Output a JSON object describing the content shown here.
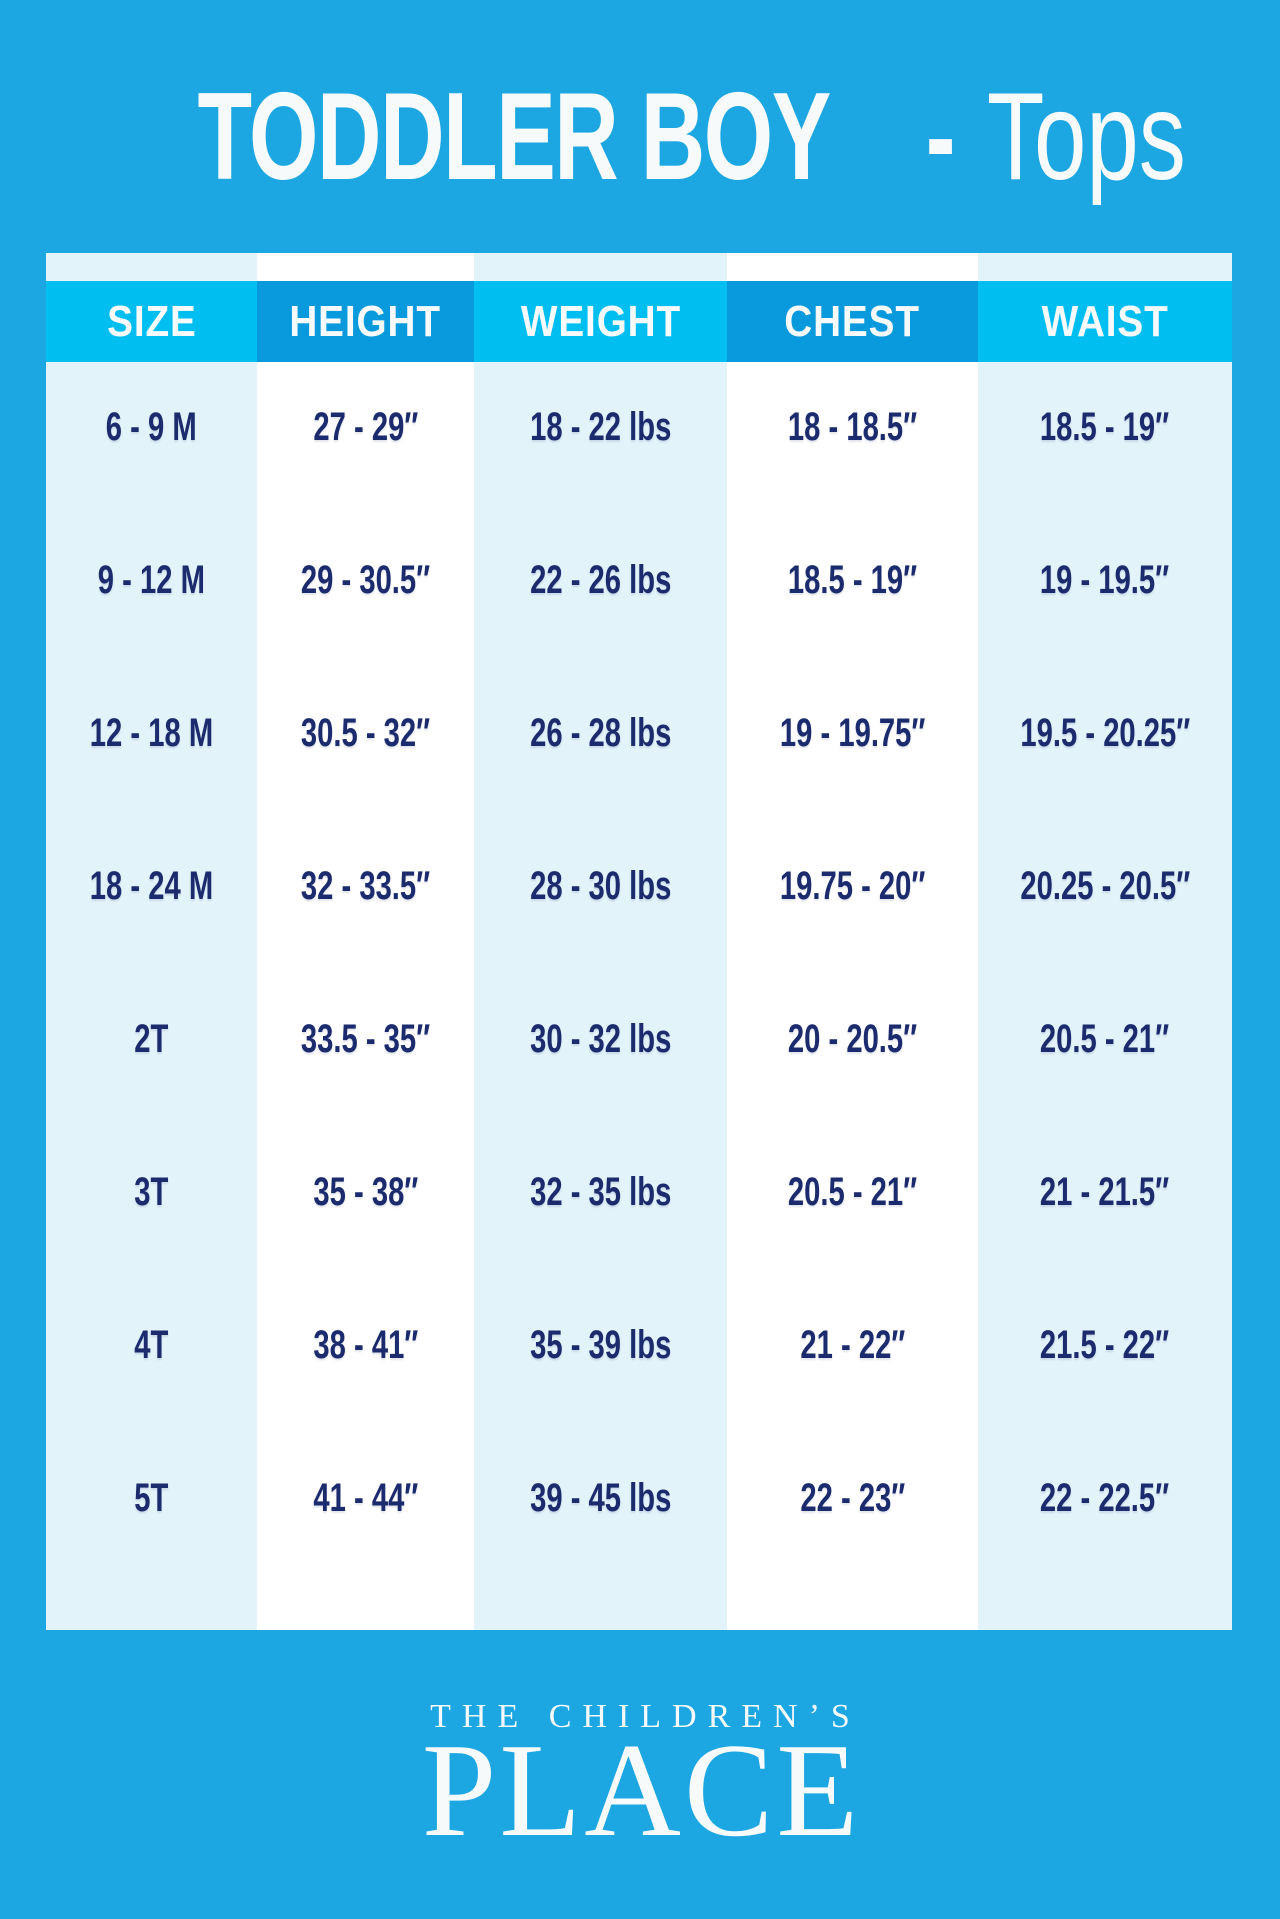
{
  "title": {
    "main": "TODDLER BOY",
    "dash": "-",
    "sub": "Tops"
  },
  "chart_data": {
    "type": "table",
    "title": "TODDLER BOY - Tops",
    "columns": [
      "SIZE",
      "HEIGHT",
      "WEIGHT",
      "CHEST",
      "WAIST"
    ],
    "rows": [
      [
        "6 - 9 M",
        "27 - 29″",
        "18 - 22 lbs",
        "18 - 18.5″",
        "18.5 - 19″"
      ],
      [
        "9 - 12 M",
        "29 - 30.5″",
        "22 - 26 lbs",
        "18.5 - 19″",
        "19 - 19.5″"
      ],
      [
        "12 - 18 M",
        "30.5 - 32″",
        "26 - 28 lbs",
        "19 - 19.75″",
        "19.5 - 20.25″"
      ],
      [
        "18 - 24 M",
        "32 - 33.5″",
        "28 - 30 lbs",
        "19.75 - 20″",
        "20.25 - 20.5″"
      ],
      [
        "2T",
        "33.5 - 35″",
        "30 - 32 lbs",
        "20 - 20.5″",
        "20.5 - 21″"
      ],
      [
        "3T",
        "35 - 38″",
        "32 - 35 lbs",
        "20.5 - 21″",
        "21 - 21.5″"
      ],
      [
        "4T",
        "38 - 41″",
        "35 - 39 lbs",
        "21 - 22″",
        "21.5 - 22″"
      ],
      [
        "5T",
        "41 - 44″",
        "39 - 45 lbs",
        "22 - 23″",
        "22 - 22.5″"
      ]
    ]
  },
  "logo": {
    "line1": "THE CHILDREN’S",
    "line2": "PLACE"
  },
  "colors": {
    "background": "#1ca6e2",
    "header_cyan": "#00bff0",
    "header_azure": "#0999dd",
    "column_light": "#e2f3fa",
    "column_white": "#ffffff",
    "text_navy": "#1b2b6d",
    "text_white": "#f6fafb"
  }
}
